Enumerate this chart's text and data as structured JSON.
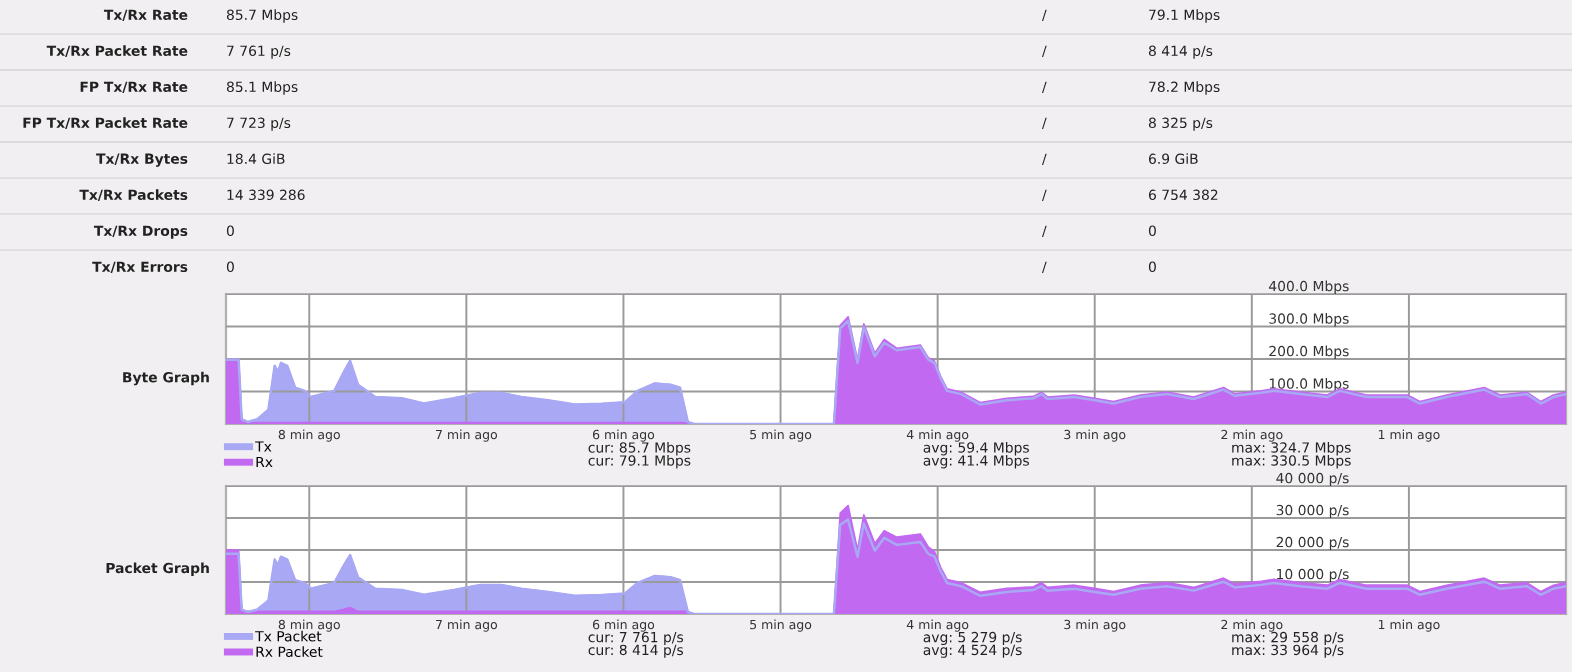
{
  "chart_data": [
    {
      "type": "other",
      "annotations": [
        "Tx/Rx Rate",
        "85.7 Mbps",
        "/",
        "79.1 Mbps",
        "Tx/Rx Packet Rate",
        "7 761 p/s",
        "/",
        "8 414 p/s",
        "FP Tx/Rx Rate",
        "85.1 Mbps",
        "/",
        "78.2 Mbps",
        "FP Tx/Rx Packet Rate",
        "7 723 p/s",
        "/",
        "8 325 p/s",
        "Tx/Rx Bytes",
        "18.4 GiB",
        "/",
        "6.9 GiB",
        "Tx/Rx Packets",
        "14 339 286",
        "/",
        "6 754 382",
        "Tx/Rx Drops",
        "0",
        "/",
        "0",
        "Tx/Rx Errors",
        "0",
        "/",
        "0"
      ]
    },
    {
      "type": "area",
      "title": "Byte Graph",
      "grid": true,
      "legend": "bottom left",
      "x": [
        -8.53,
        -8.45,
        -8.43,
        -8.39,
        -8.33,
        -8.26,
        -8.22,
        -8.2,
        -8.18,
        -8.14,
        -8.09,
        -8.03,
        -7.99,
        -7.84,
        -7.78,
        -7.74,
        -7.69,
        -7.58,
        -7.41,
        -7.27,
        -7.08,
        -6.91,
        -6.78,
        -6.65,
        -6.48,
        -6.31,
        -6.14,
        -5.99,
        -5.91,
        -5.8,
        -5.7,
        -5.64,
        -5.59,
        -5.55,
        -4.66,
        -4.62,
        -4.57,
        -4.51,
        -4.47,
        -4.4,
        -4.34,
        -4.26,
        -4.11,
        -4.06,
        -4.02,
        -3.98,
        -3.94,
        -3.85,
        -3.73,
        -3.56,
        -3.39,
        -3.34,
        -3.3,
        -3.13,
        -3.0,
        -2.88,
        -2.71,
        -2.54,
        -2.37,
        -2.18,
        -2.11,
        -1.94,
        -1.86,
        -1.69,
        -1.52,
        -1.44,
        -1.27,
        -1.01,
        -0.93,
        -0.76,
        -0.52,
        -0.42,
        -0.25,
        -0.16,
        -0.08,
        0.0
      ],
      "xlim": [
        -8.53,
        0
      ],
      "xticks": [
        {
          "value": -8,
          "label": "8 min ago"
        },
        {
          "value": -7,
          "label": "7 min ago"
        },
        {
          "value": -6,
          "label": "6 min ago"
        },
        {
          "value": -5,
          "label": "5 min ago"
        },
        {
          "value": -4,
          "label": "4 min ago"
        },
        {
          "value": -3,
          "label": "3 min ago"
        },
        {
          "value": -2,
          "label": "2 min ago"
        },
        {
          "value": -1,
          "label": "1 min ago"
        }
      ],
      "ylim": [
        0,
        400
      ],
      "yticks": [
        {
          "value": 100,
          "label": "100.0 Mbps"
        },
        {
          "value": 200,
          "label": "200.0 Mbps"
        },
        {
          "value": 300,
          "label": "300.0 Mbps"
        },
        {
          "value": 400,
          "label": "400.0 Mbps"
        }
      ],
      "series": [
        {
          "name": "Tx",
          "color": "#a8a8f4",
          "values": [
            198,
            198,
            15,
            6,
            15,
            44,
            179,
            160,
            188,
            179,
            112,
            102,
            83,
            102,
            160,
            194,
            121,
            83,
            79,
            63,
            79,
            96,
            96,
            83,
            73,
            60,
            62,
            67,
            102,
            125,
            121,
            112,
            6,
            0,
            0,
            294,
            317,
            188,
            298,
            208,
            250,
            227,
            237,
            198,
            188,
            140,
            102,
            92,
            60,
            73,
            79,
            92,
            77,
            83,
            73,
            63,
            83,
            92,
            77,
            106,
            87,
            96,
            102,
            92,
            83,
            102,
            83,
            83,
            63,
            83,
            106,
            83,
            92,
            63,
            83,
            92
          ]
        },
        {
          "name": "Rx",
          "color": "#c169f0",
          "values": [
            198,
            198,
            4,
            4,
            4,
            4,
            4,
            4,
            4,
            4,
            4,
            4,
            4,
            4,
            4,
            4,
            4,
            4,
            4,
            4,
            4,
            4,
            4,
            4,
            4,
            4,
            4,
            4,
            4,
            4,
            4,
            4,
            2,
            0,
            0,
            304,
            330,
            198,
            308,
            218,
            260,
            233,
            243,
            204,
            194,
            146,
            108,
            98,
            66,
            79,
            85,
            98,
            83,
            89,
            79,
            69,
            89,
            98,
            83,
            112,
            93,
            102,
            108,
            98,
            89,
            108,
            89,
            89,
            69,
            89,
            112,
            89,
            98,
            69,
            89,
            98
          ]
        }
      ],
      "annotations": [
        "cur: 85.7 Mbps",
        "avg: 59.4 Mbps",
        "max: 324.7 Mbps",
        "cur: 79.1 Mbps",
        "avg: 41.4 Mbps",
        "max: 330.5 Mbps"
      ]
    },
    {
      "type": "area",
      "title": "Packet Graph",
      "grid": true,
      "legend": "bottom left",
      "x": [
        -8.53,
        -8.45,
        -8.43,
        -8.39,
        -8.33,
        -8.26,
        -8.22,
        -8.2,
        -8.18,
        -8.14,
        -8.09,
        -8.03,
        -7.99,
        -7.84,
        -7.78,
        -7.74,
        -7.69,
        -7.58,
        -7.41,
        -7.27,
        -7.08,
        -6.91,
        -6.78,
        -6.65,
        -6.48,
        -6.31,
        -6.14,
        -5.99,
        -5.91,
        -5.8,
        -5.7,
        -5.64,
        -5.59,
        -5.55,
        -4.66,
        -4.62,
        -4.57,
        -4.51,
        -4.47,
        -4.4,
        -4.34,
        -4.26,
        -4.11,
        -4.06,
        -4.02,
        -3.98,
        -3.94,
        -3.85,
        -3.73,
        -3.56,
        -3.39,
        -3.34,
        -3.3,
        -3.13,
        -3.0,
        -2.88,
        -2.71,
        -2.54,
        -2.37,
        -2.18,
        -2.11,
        -1.94,
        -1.86,
        -1.69,
        -1.52,
        -1.44,
        -1.27,
        -1.01,
        -0.93,
        -0.76,
        -0.52,
        -0.42,
        -0.25,
        -0.16,
        -0.08,
        0.0
      ],
      "xlim": [
        -8.53,
        0
      ],
      "xticks": [
        {
          "value": -8,
          "label": "8 min ago"
        },
        {
          "value": -7,
          "label": "7 min ago"
        },
        {
          "value": -6,
          "label": "6 min ago"
        },
        {
          "value": -5,
          "label": "5 min ago"
        },
        {
          "value": -4,
          "label": "4 min ago"
        },
        {
          "value": -3,
          "label": "3 min ago"
        },
        {
          "value": -2,
          "label": "2 min ago"
        },
        {
          "value": -1,
          "label": "1 min ago"
        }
      ],
      "ylim": [
        0,
        40000
      ],
      "yticks": [
        {
          "value": 10000,
          "label": "10 000 p/s"
        },
        {
          "value": 20000,
          "label": "20 000 p/s"
        },
        {
          "value": 30000,
          "label": "30 000 p/s"
        },
        {
          "value": 40000,
          "label": "40 000 p/s"
        }
      ],
      "series": [
        {
          "name": "Tx Packet",
          "color": "#a8a8f4",
          "values": [
            18800,
            18800,
            1400,
            600,
            1400,
            4200,
            17000,
            15200,
            17900,
            17000,
            10600,
            9700,
            7900,
            9700,
            15200,
            18400,
            11500,
            7900,
            7500,
            6000,
            7500,
            9100,
            9100,
            7900,
            6900,
            5700,
            5900,
            6400,
            9700,
            11900,
            11500,
            10600,
            600,
            0,
            0,
            27900,
            29500,
            17900,
            28300,
            19800,
            23800,
            21600,
            22500,
            18800,
            17900,
            13300,
            9700,
            8700,
            5700,
            6900,
            7500,
            8700,
            7300,
            7900,
            6900,
            6000,
            7900,
            8700,
            7300,
            10100,
            8300,
            9100,
            9700,
            8700,
            7900,
            9700,
            7900,
            7900,
            6000,
            7900,
            10100,
            7900,
            8700,
            6000,
            7900,
            8700
          ]
        },
        {
          "name": "Rx Packet",
          "color": "#c169f0",
          "values": [
            20000,
            20000,
            800,
            800,
            800,
            800,
            800,
            800,
            800,
            800,
            800,
            800,
            800,
            800,
            1500,
            2000,
            800,
            800,
            800,
            800,
            800,
            800,
            800,
            800,
            800,
            800,
            800,
            800,
            800,
            800,
            800,
            800,
            800,
            0,
            0,
            31500,
            33900,
            20000,
            31000,
            22000,
            26000,
            24000,
            25000,
            21000,
            19500,
            14500,
            10800,
            9800,
            6800,
            8000,
            8500,
            9800,
            8300,
            9000,
            8000,
            7000,
            9000,
            9800,
            8300,
            11200,
            9400,
            10200,
            10800,
            9800,
            9000,
            10800,
            9000,
            9000,
            7000,
            9000,
            11200,
            9000,
            9800,
            7000,
            9000,
            9800
          ]
        }
      ],
      "annotations": [
        "cur: 7 761 p/s",
        "avg: 5 279 p/s",
        "max: 29 558 p/s",
        "cur: 8 414 p/s",
        "avg: 4 524 p/s",
        "max: 33 964 p/s"
      ]
    }
  ]
}
